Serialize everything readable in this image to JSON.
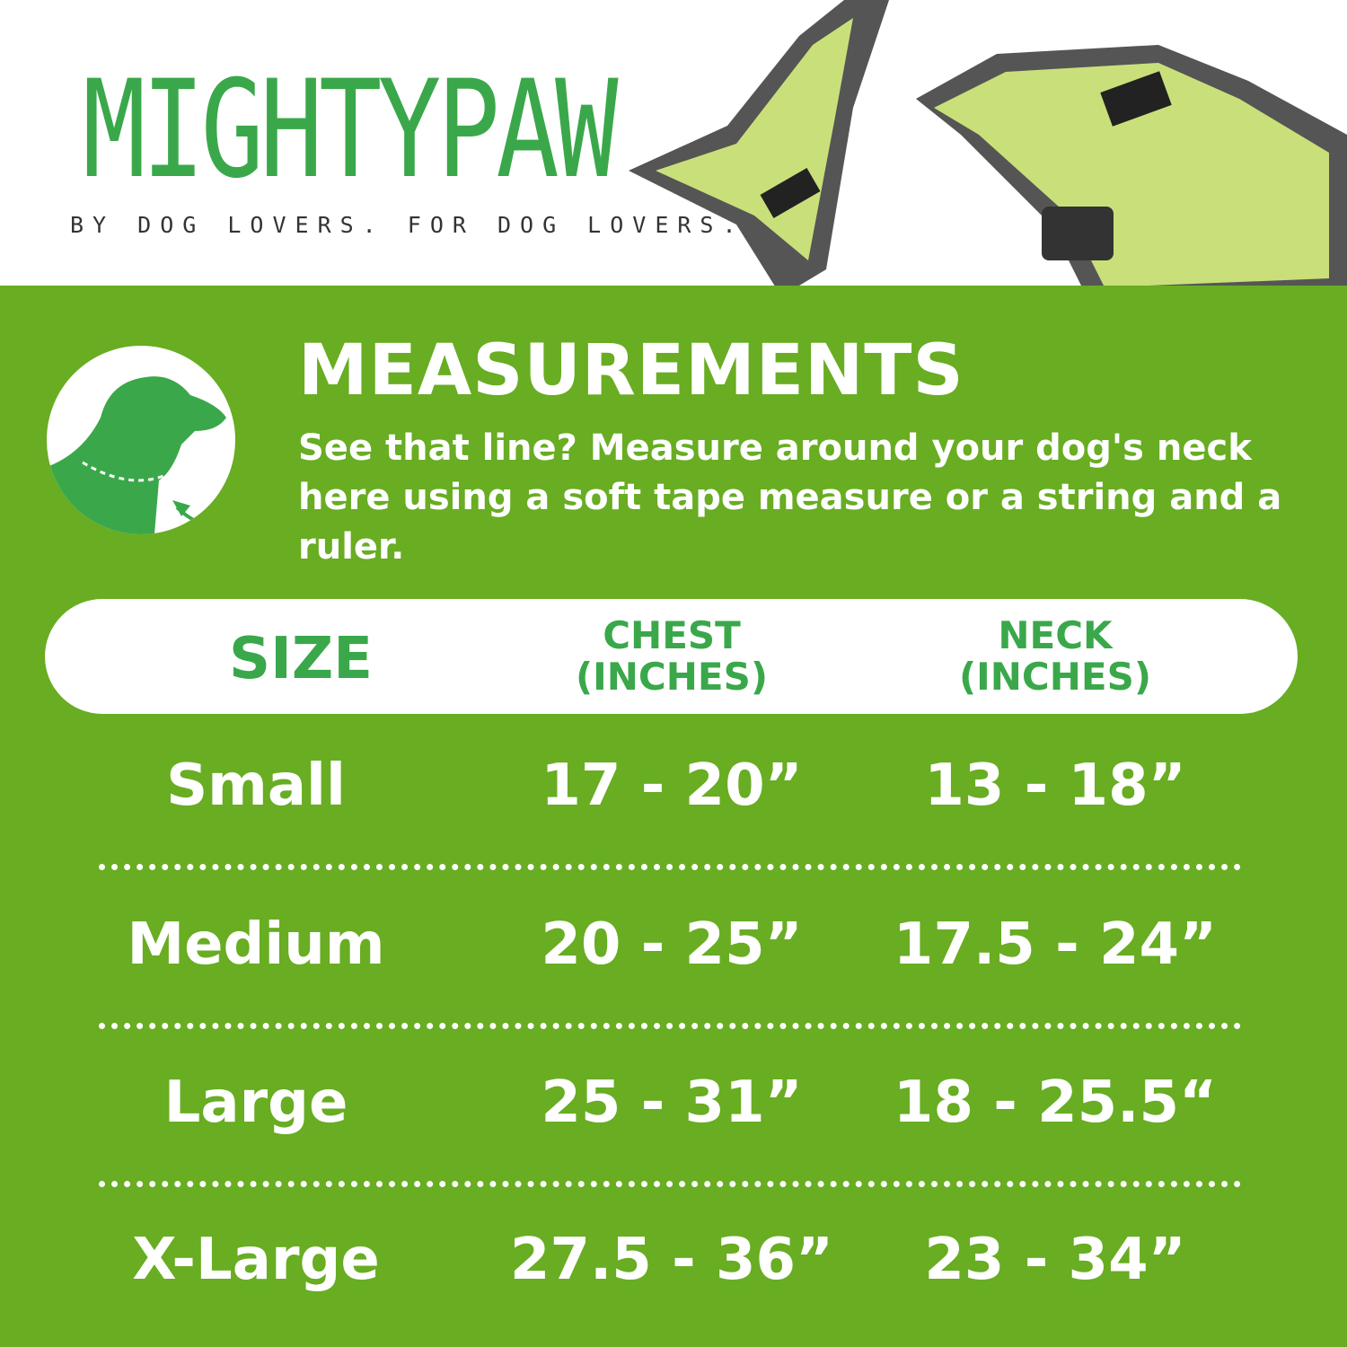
{
  "brand": {
    "logo": "MIGHTYPAW",
    "tagline": "BY DOG LOVERS. FOR DOG LOVERS."
  },
  "colors": {
    "background_green": "#68ad22",
    "accent_green": "#3aa84a"
  },
  "icon": "dog-neck-measure-icon",
  "title": "MEASUREMENTS",
  "description": "See that line? Measure around your dog's neck here using a soft tape measure or a string and a ruler.",
  "table": {
    "headers": {
      "size": "SIZE",
      "chest_line1": "CHEST",
      "chest_line2": "(INCHES)",
      "neck_line1": "NECK",
      "neck_line2": "(INCHES)"
    },
    "rows": [
      {
        "size": "Small",
        "chest": "17 - 20”",
        "neck": "13 - 18”"
      },
      {
        "size": "Medium",
        "chest": "20 - 25”",
        "neck": "17.5 - 24”"
      },
      {
        "size": "Large",
        "chest": "25 - 31”",
        "neck": "18 - 25.5“"
      },
      {
        "size": "X-Large",
        "chest": "27.5 - 36”",
        "neck": "23 - 34”"
      }
    ]
  }
}
